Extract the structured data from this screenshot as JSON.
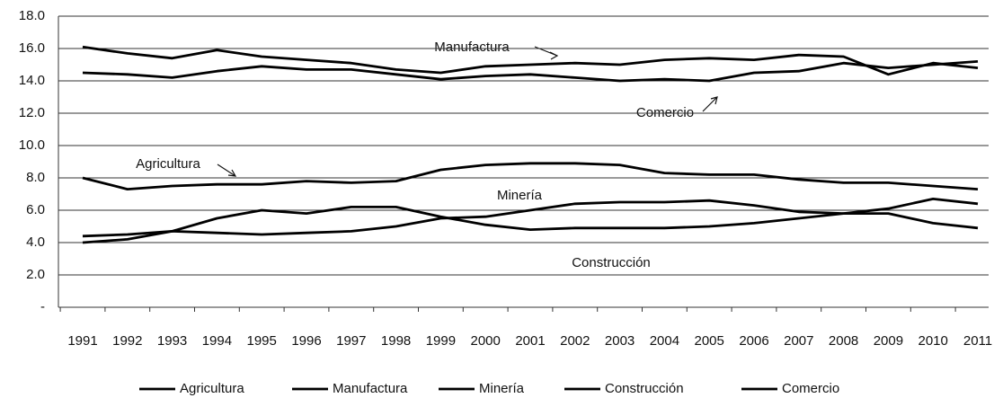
{
  "chart_data": {
    "type": "line",
    "categories": [
      "1991",
      "1992",
      "1993",
      "1994",
      "1995",
      "1996",
      "1997",
      "1998",
      "1999",
      "2000",
      "2001",
      "2002",
      "2003",
      "2004",
      "2005",
      "2006",
      "2007",
      "2008",
      "2009",
      "2010",
      "2011"
    ],
    "series": [
      {
        "name": "Agricultura",
        "color": "#000000",
        "values": [
          8.0,
          7.3,
          7.5,
          7.6,
          7.6,
          7.8,
          7.7,
          7.8,
          8.5,
          8.8,
          8.9,
          8.9,
          8.8,
          8.3,
          8.2,
          8.2,
          7.9,
          7.7,
          7.7,
          7.5,
          7.3
        ]
      },
      {
        "name": "Manufactura",
        "color": "#000000",
        "values": [
          16.1,
          15.7,
          15.4,
          15.9,
          15.5,
          15.3,
          15.1,
          14.7,
          14.5,
          14.9,
          15.0,
          15.1,
          15.0,
          15.3,
          15.4,
          15.3,
          15.6,
          15.5,
          14.4,
          15.1,
          14.8
        ]
      },
      {
        "name": "Minería",
        "color": "#000000",
        "values": [
          4.4,
          4.5,
          4.7,
          4.6,
          4.5,
          4.6,
          4.7,
          5.0,
          5.5,
          5.6,
          6.0,
          6.4,
          6.5,
          6.5,
          6.6,
          6.3,
          5.9,
          5.8,
          5.8,
          5.2,
          4.9
        ]
      },
      {
        "name": "Construcción",
        "color": "#000000",
        "values": [
          4.0,
          4.2,
          4.7,
          5.5,
          6.0,
          5.8,
          6.2,
          6.2,
          5.6,
          5.1,
          4.8,
          4.9,
          4.9,
          4.9,
          5.0,
          5.2,
          5.5,
          5.8,
          6.1,
          6.7,
          6.4
        ]
      },
      {
        "name": "Comercio",
        "color": "#000000",
        "values": [
          14.5,
          14.4,
          14.2,
          14.6,
          14.9,
          14.7,
          14.7,
          14.4,
          14.1,
          14.3,
          14.4,
          14.2,
          14.0,
          14.1,
          14.0,
          14.5,
          14.6,
          15.1,
          14.8,
          15.0,
          15.2
        ]
      }
    ],
    "ylim": [
      0,
      18
    ],
    "yticks": [
      {
        "value": 0,
        "label": "-"
      },
      {
        "value": 2,
        "label": "2.0"
      },
      {
        "value": 4,
        "label": "4.0"
      },
      {
        "value": 6,
        "label": "6.0"
      },
      {
        "value": 8,
        "label": "8.0"
      },
      {
        "value": 10,
        "label": "10.0"
      },
      {
        "value": 12,
        "label": "12.0"
      },
      {
        "value": 14,
        "label": "14.0"
      },
      {
        "value": 16,
        "label": "16.0"
      },
      {
        "value": 18,
        "label": "18.0"
      }
    ],
    "grid": true,
    "legend": "bottom",
    "annotations": [
      "Manufactura",
      "Comercio",
      "Agricultura",
      "Minería",
      "Construcción"
    ]
  }
}
